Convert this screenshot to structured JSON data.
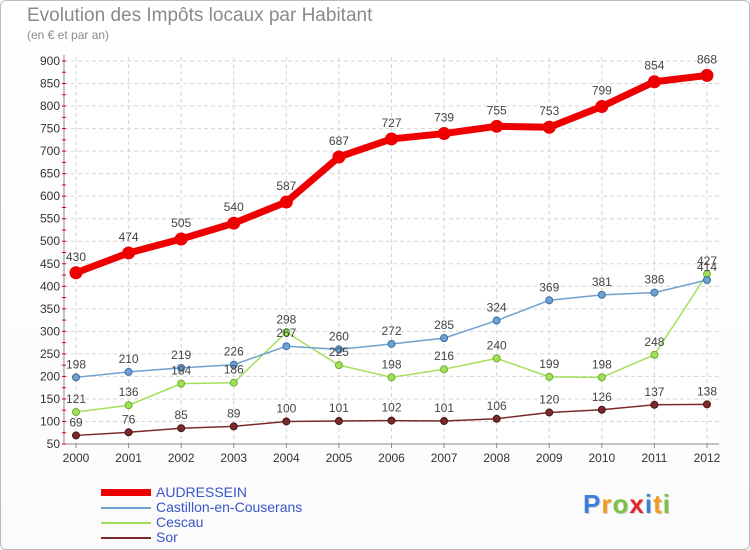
{
  "title": "Evolution des Impôts locaux par Habitant",
  "subtitle": "(en € et par an)",
  "logo_text": "Proxiti",
  "chart_data": {
    "type": "line",
    "title": "Evolution des Impôts locaux par Habitant",
    "subtitle": "(en € et par an)",
    "x": [
      2000,
      2001,
      2002,
      2003,
      2004,
      2005,
      2006,
      2007,
      2008,
      2009,
      2010,
      2011,
      2012
    ],
    "ylim": [
      50,
      900
    ],
    "yticks": [
      50,
      100,
      150,
      200,
      250,
      300,
      350,
      400,
      450,
      500,
      550,
      600,
      650,
      700,
      750,
      800,
      850,
      900
    ],
    "grid": true,
    "legend_position": "bottom-left",
    "series": [
      {
        "name": "AUDRESSEIN",
        "color": "#ee0000",
        "values": [
          430,
          474,
          505,
          540,
          587,
          687,
          727,
          739,
          755,
          753,
          799,
          854,
          868
        ]
      },
      {
        "name": "Castillon-en-Couserans",
        "color": "#6fa1d2",
        "values": [
          198,
          210,
          219,
          226,
          267,
          260,
          272,
          285,
          324,
          369,
          381,
          386,
          414
        ]
      },
      {
        "name": "Cescau",
        "color": "#a3e05a",
        "values": [
          121,
          136,
          184,
          186,
          298,
          225,
          198,
          216,
          240,
          199,
          198,
          248,
          427
        ]
      },
      {
        "name": "Sor",
        "color": "#7a2a2a",
        "values": [
          69,
          76,
          85,
          89,
          100,
          101,
          102,
          101,
          106,
          120,
          126,
          137,
          138
        ]
      }
    ]
  }
}
